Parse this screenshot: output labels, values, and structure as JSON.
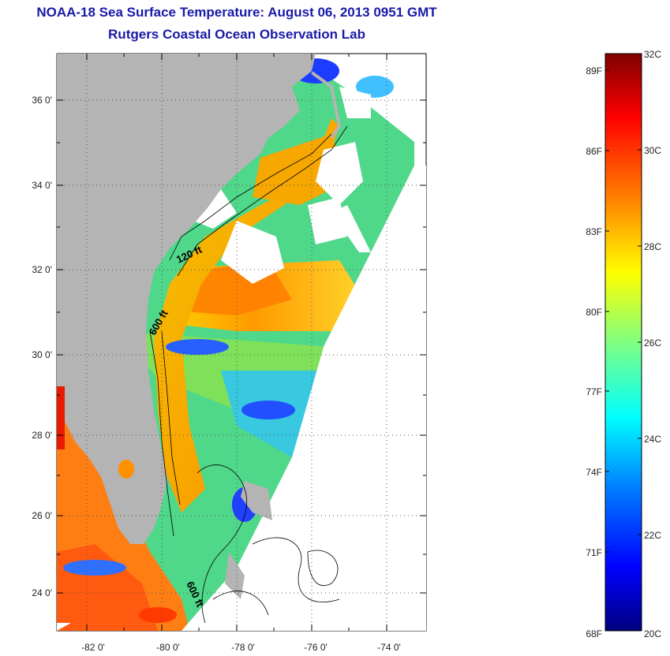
{
  "title": "NOAA-18 Sea Surface Temperature:  August 06, 2013 0951 GMT",
  "subtitle": "Rutgers Coastal Ocean Observation Lab",
  "map": {
    "lon_labels": [
      "-82 0'",
      "-80 0'",
      "-78 0'",
      "-76 0'",
      "-74 0'"
    ],
    "lat_labels": [
      "36 0'",
      "34 0'",
      "32 0'",
      "30 0'",
      "28 0'",
      "26 0'",
      "24 0'"
    ],
    "isobath_labels": [
      "120 ft",
      "600 ft",
      "600 ft"
    ]
  },
  "colorbar": {
    "celsius_labels": [
      "32C",
      "30C",
      "28C",
      "26C",
      "24C",
      "22C",
      "20C"
    ],
    "fahrenheit_labels": [
      "89F",
      "86F",
      "83F",
      "80F",
      "77F",
      "74F",
      "71F",
      "68F"
    ],
    "range_c": [
      20,
      32
    ],
    "colors": [
      "#00007f",
      "#0000ff",
      "#0080ff",
      "#00ffff",
      "#80ff80",
      "#ffff00",
      "#ff8000",
      "#ff0000",
      "#7f0000"
    ]
  },
  "colors": {
    "land": "#b4b4b4",
    "title": "#1a1aa8"
  }
}
